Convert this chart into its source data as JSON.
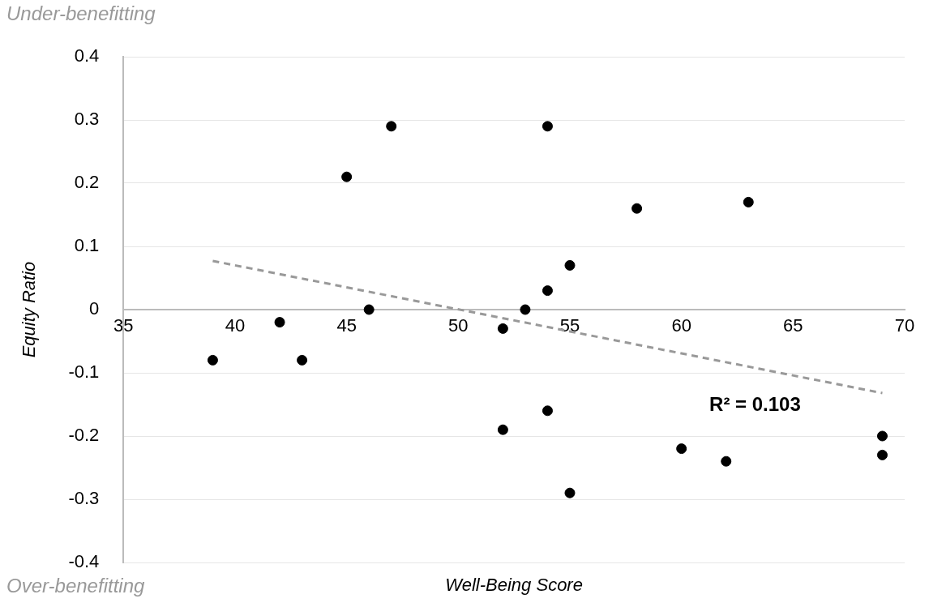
{
  "chart_data": {
    "type": "scatter",
    "xlabel": "Well-Being Score",
    "ylabel": "Equity Ratio",
    "xlim": [
      35,
      70
    ],
    "xticks": [
      35,
      40,
      45,
      50,
      55,
      60,
      65,
      70
    ],
    "ylim": [
      -0.4,
      0.4
    ],
    "yticks": [
      -0.4,
      -0.3,
      -0.2,
      -0.1,
      0,
      0.1,
      0.2,
      0.3,
      0.4
    ],
    "grid": "y",
    "legend": false,
    "marker": "circle",
    "series": [
      {
        "type": "scatter",
        "color": "#000000",
        "x": [
          39,
          42,
          43,
          45,
          46,
          47,
          52,
          52,
          53,
          54,
          54,
          54,
          55,
          55,
          58,
          60,
          62,
          63,
          69,
          69
        ],
        "values": [
          -0.08,
          -0.02,
          -0.08,
          0.21,
          0,
          0.29,
          -0.03,
          -0.19,
          0,
          0.03,
          0.29,
          -0.16,
          0.07,
          -0.29,
          0.16,
          -0.22,
          -0.24,
          0.17,
          -0.2,
          -0.23
        ]
      },
      {
        "type": "line",
        "color": "#999999",
        "line_style": "dashed",
        "marker": "none",
        "x": [
          39,
          69
        ],
        "values": [
          0.077,
          -0.132
        ]
      }
    ],
    "annotations": [
      "Under-benefitting",
      "R² = 0.103",
      "Over-benefitting"
    ]
  }
}
